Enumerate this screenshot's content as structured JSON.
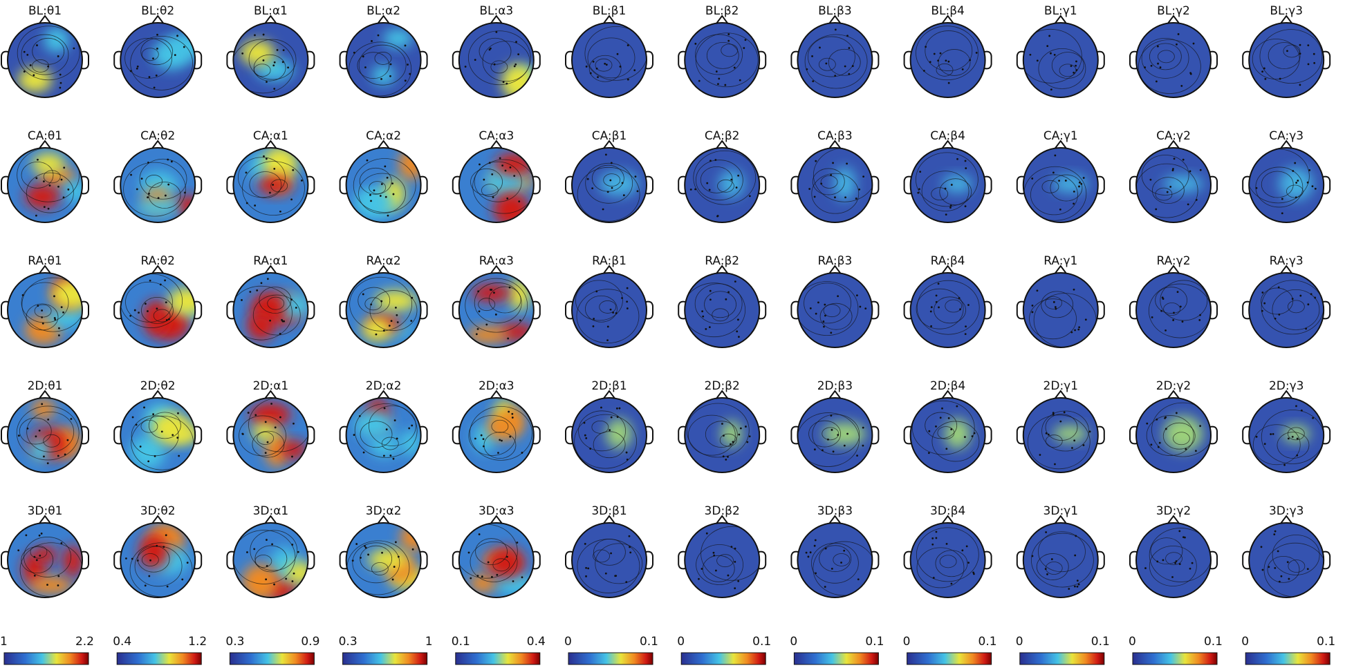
{
  "rows": [
    {
      "titles": [
        "BL:θ1",
        "BL:θ2",
        "BL:α1",
        "BL:α2",
        "BL:α3",
        "BL:β1",
        "BL:β2",
        "BL:β3",
        "BL:β4",
        "BL:γ1",
        "BL:γ2",
        "BL:γ3"
      ]
    },
    {
      "titles": [
        "CA:θ1",
        "CA:θ2",
        "CA:α1",
        "CA:α2",
        "CA:α3",
        "CA:β1",
        "CA:β2",
        "CA:β3",
        "CA:β4",
        "CA:γ1",
        "CA:γ2",
        "CA:γ3"
      ]
    },
    {
      "titles": [
        "RA:θ1",
        "RA:θ2",
        "RA:α1",
        "RA:α2",
        "RA:α3",
        "RA:β1",
        "RA:β2",
        "RA:β3",
        "RA:β4",
        "RA:γ1",
        "RA:γ2",
        "RA:γ3"
      ]
    },
    {
      "titles": [
        "2D:θ1",
        "2D:θ2",
        "2D:α1",
        "2D:α2",
        "2D:α3",
        "2D:β1",
        "2D:β2",
        "2D:β3",
        "2D:β4",
        "2D:γ1",
        "2D:γ2",
        "2D:γ3"
      ]
    },
    {
      "titles": [
        "3D:θ1",
        "3D:θ2",
        "3D:α1",
        "3D:α2",
        "3D:α3",
        "3D:β1",
        "3D:β2",
        "3D:β3",
        "3D:β4",
        "3D:γ1",
        "3D:γ2",
        "3D:γ3"
      ]
    }
  ],
  "colorbars": [
    {
      "min": 1,
      "max": 2.2
    },
    {
      "min": 0.4,
      "max": 1.2
    },
    {
      "min": 0.3,
      "max": 0.9
    },
    {
      "min": 0.3,
      "max": 1
    },
    {
      "min": 0.1,
      "max": 0.4
    },
    {
      "min": 0,
      "max": 0.1
    },
    {
      "min": 0,
      "max": 0.1
    },
    {
      "min": 0,
      "max": 0.1
    },
    {
      "min": 0,
      "max": 0.1
    },
    {
      "min": 0,
      "max": 0.1
    },
    {
      "min": 0,
      "max": 0.1
    },
    {
      "min": 0,
      "max": 0.1
    }
  ]
}
